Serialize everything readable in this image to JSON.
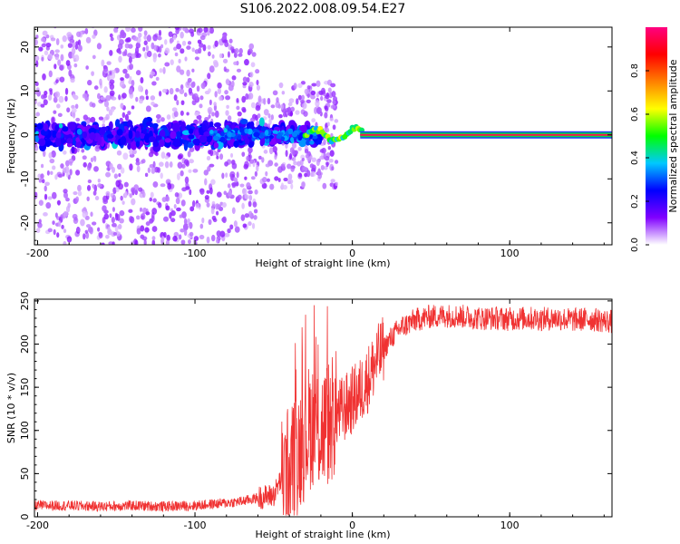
{
  "title": "S106.2022.008.09.54.E27",
  "chart_data": [
    {
      "type": "heatmap",
      "xlabel": "Height of straight line (km)",
      "ylabel": "Frequency (Hz)",
      "xlim": [
        -202,
        165
      ],
      "ylim": [
        -25,
        24.5
      ],
      "xticks": [
        -200,
        -100,
        0,
        100
      ],
      "yticks": [
        -20,
        -10,
        0,
        10,
        20
      ],
      "grid": false,
      "colorbar": {
        "label": "Normalized spectral amplitude",
        "range": [
          0,
          1
        ],
        "ticks": [
          "0.0",
          "0.2",
          "0.4",
          "0.6",
          "0.8"
        ],
        "tick_values": [
          0.0,
          0.2,
          0.4,
          0.6,
          0.8
        ],
        "colors": [
          "#ffffff",
          "#8000ff",
          "#0000ff",
          "#00c8ff",
          "#00ff00",
          "#ffff00",
          "#ff8000",
          "#ff0000",
          "#ff0080"
        ]
      },
      "features": {
        "carrier_line": {
          "x_range": [
            5,
            165
          ],
          "frequency": 0,
          "amplitude": 1.0
        },
        "scatter_region": {
          "x_range": [
            -202,
            -20
          ],
          "frequency_spread": 25,
          "amplitude_max": 0.4
        },
        "transition_region": {
          "x_range": [
            -40,
            5
          ]
        }
      }
    },
    {
      "type": "line",
      "xlabel": "Height of straight line (km)",
      "ylabel": "SNR (10 * v/v)",
      "xlim": [
        -202,
        165
      ],
      "ylim": [
        0,
        252
      ],
      "xticks": [
        -200,
        -100,
        0,
        100
      ],
      "yticks": [
        0,
        50,
        100,
        150,
        200,
        250
      ],
      "grid": false,
      "series": [
        {
          "color": "#f03232",
          "x": [
            -202,
            -180,
            -160,
            -140,
            -120,
            -100,
            -80,
            -70,
            -60,
            -50,
            -45,
            -40,
            -35,
            -30,
            -25,
            -20,
            -15,
            -10,
            -5,
            0,
            5,
            10,
            15,
            20,
            25,
            30,
            40,
            50,
            60,
            70,
            80,
            90,
            100,
            110,
            120,
            130,
            140,
            150,
            165
          ],
          "y": [
            13,
            13,
            12,
            13,
            12,
            13,
            16,
            18,
            22,
            25,
            45,
            55,
            75,
            95,
            110,
            100,
            110,
            120,
            125,
            135,
            145,
            160,
            180,
            195,
            208,
            218,
            228,
            232,
            233,
            232,
            230,
            230,
            229,
            230,
            229,
            230,
            228,
            229,
            226
          ]
        }
      ]
    }
  ]
}
